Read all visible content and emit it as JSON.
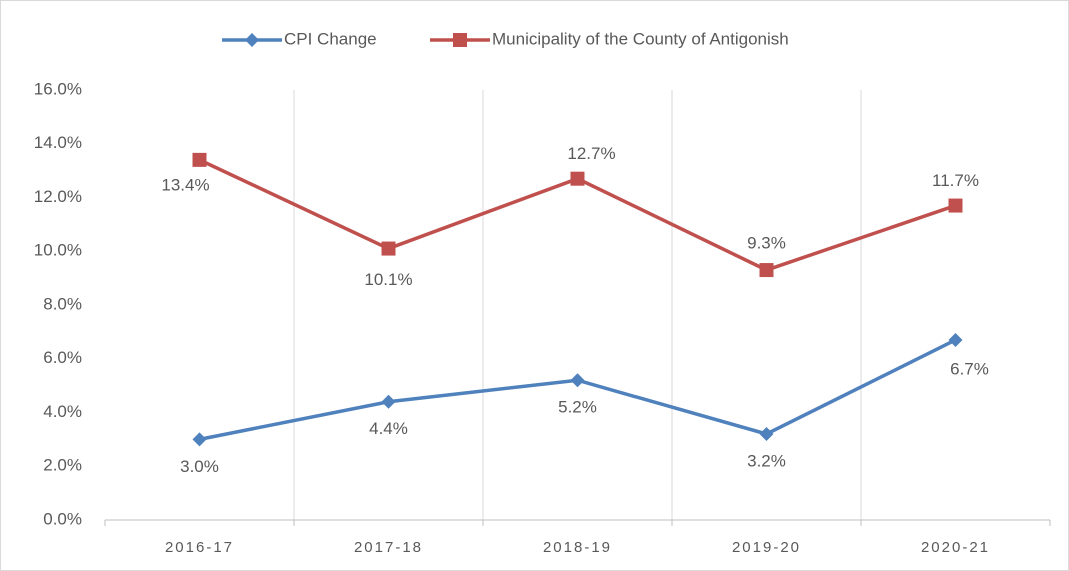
{
  "chart_data": {
    "type": "line",
    "categories": [
      "2016-17",
      "2017-18",
      "2018-19",
      "2019-20",
      "2020-21"
    ],
    "series": [
      {
        "name": "CPI Change",
        "color": "#4f81bd",
        "values": [
          3.0,
          4.4,
          5.2,
          3.2,
          6.7
        ],
        "value_labels": [
          "3.0%",
          "4.4%",
          "5.2%",
          "3.2%",
          "6.7%"
        ]
      },
      {
        "name": "Municipality of the County of Antigonish",
        "color": "#c0504d",
        "values": [
          13.4,
          10.1,
          12.7,
          9.3,
          11.7
        ],
        "value_labels": [
          "13.4%",
          "10.1%",
          "12.7%",
          "9.3%",
          "11.7%"
        ]
      }
    ],
    "ylim": [
      0,
      16
    ],
    "yticks": [
      {
        "value": 0,
        "label": "0.0%"
      },
      {
        "value": 2,
        "label": "2.0%"
      },
      {
        "value": 4,
        "label": "4.0%"
      },
      {
        "value": 6,
        "label": "6.0%"
      },
      {
        "value": 8,
        "label": "8.0%"
      },
      {
        "value": 10,
        "label": "10.0%"
      },
      {
        "value": 12,
        "label": "12.0%"
      },
      {
        "value": 14,
        "label": "14.0%"
      },
      {
        "value": 16,
        "label": "16.0%"
      }
    ],
    "grid": true
  }
}
